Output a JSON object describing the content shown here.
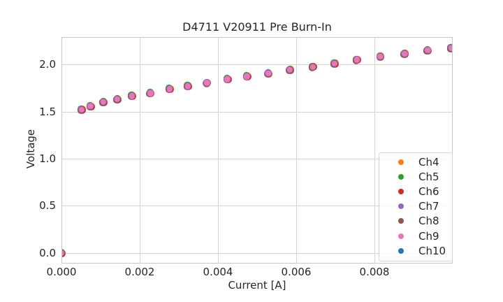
{
  "palette": {
    "background": "#ffffff",
    "grid": "#d4d4d4",
    "spine": "#c7c7c7",
    "text": "#262626",
    "visible_point_color": "#e377c2"
  },
  "chart_data": {
    "type": "scatter",
    "title": "D4711 V20911 Pre Burn-In",
    "xlabel": "Current [A]",
    "ylabel": "Voltage",
    "grid": true,
    "legend_position": "lower right",
    "xlim": [
      0.0,
      0.01
    ],
    "ylim": [
      -0.111,
      2.296
    ],
    "x_ticks": {
      "values": [
        0.0,
        0.002,
        0.004,
        0.006,
        0.008
      ],
      "labels": [
        "0.000",
        "0.002",
        "0.004",
        "0.006",
        "0.008"
      ]
    },
    "y_ticks": {
      "values": [
        0.0,
        0.5,
        1.0,
        1.5,
        2.0
      ],
      "labels": [
        "0.0",
        "0.5",
        "1.0",
        "1.5",
        "2.0"
      ]
    },
    "x": [
      0.0,
      0.00051,
      0.00074,
      0.00107,
      0.00143,
      0.0018,
      0.00227,
      0.00276,
      0.00323,
      0.00372,
      0.00424,
      0.00474,
      0.00529,
      0.00584,
      0.00642,
      0.00698,
      0.00755,
      0.00815,
      0.00877,
      0.00936,
      0.00996
    ],
    "series": [
      {
        "name": "Ch4",
        "color": "#ff7f0e",
        "y": [
          0.0,
          1.525,
          1.56,
          1.605,
          1.635,
          1.67,
          1.7,
          1.745,
          1.775,
          1.81,
          1.848,
          1.878,
          1.91,
          1.948,
          1.98,
          2.015,
          2.055,
          2.09,
          2.12,
          2.155,
          2.18
        ]
      },
      {
        "name": "Ch5",
        "color": "#2ca02c",
        "y": [
          0.0,
          1.525,
          1.56,
          1.605,
          1.635,
          1.67,
          1.7,
          1.745,
          1.775,
          1.81,
          1.848,
          1.878,
          1.91,
          1.948,
          1.98,
          2.015,
          2.055,
          2.09,
          2.12,
          2.155,
          2.18
        ]
      },
      {
        "name": "Ch6",
        "color": "#d62728",
        "y": [
          0.0,
          1.525,
          1.56,
          1.605,
          1.635,
          1.67,
          1.7,
          1.745,
          1.775,
          1.81,
          1.848,
          1.878,
          1.91,
          1.948,
          1.98,
          2.015,
          2.055,
          2.09,
          2.12,
          2.155,
          2.18
        ]
      },
      {
        "name": "Ch7",
        "color": "#9467bd",
        "y": [
          0.0,
          1.525,
          1.56,
          1.605,
          1.635,
          1.67,
          1.7,
          1.745,
          1.775,
          1.81,
          1.848,
          1.878,
          1.91,
          1.948,
          1.98,
          2.015,
          2.055,
          2.09,
          2.12,
          2.155,
          2.18
        ]
      },
      {
        "name": "Ch8",
        "color": "#8c564b",
        "y": [
          0.0,
          1.525,
          1.56,
          1.605,
          1.635,
          1.67,
          1.7,
          1.745,
          1.775,
          1.81,
          1.848,
          1.878,
          1.91,
          1.948,
          1.98,
          2.015,
          2.055,
          2.09,
          2.12,
          2.155,
          2.18
        ]
      },
      {
        "name": "Ch9",
        "color": "#e377c2",
        "y": [
          0.0,
          1.525,
          1.56,
          1.605,
          1.635,
          1.67,
          1.7,
          1.745,
          1.775,
          1.81,
          1.848,
          1.878,
          1.91,
          1.948,
          1.98,
          2.015,
          2.055,
          2.09,
          2.12,
          2.155,
          2.18
        ]
      },
      {
        "name": "Ch10",
        "color": "#1f77b4",
        "y": [
          0.0,
          1.525,
          1.56,
          1.605,
          1.635,
          1.67,
          1.7,
          1.745,
          1.775,
          1.81,
          1.848,
          1.878,
          1.91,
          1.948,
          1.98,
          2.015,
          2.055,
          2.09,
          2.12,
          2.155,
          2.18
        ]
      }
    ]
  }
}
